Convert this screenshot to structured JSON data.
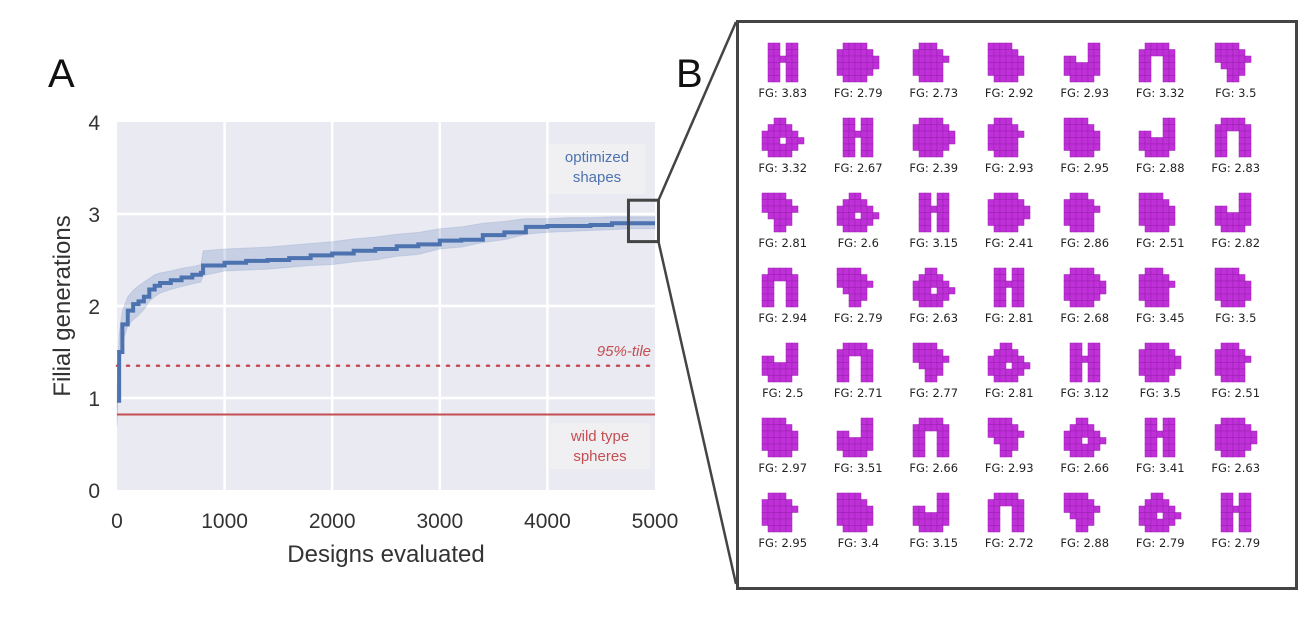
{
  "panels": {
    "a_label": "A",
    "b_label": "B"
  },
  "chart_data": {
    "type": "line",
    "title": "",
    "xlabel": "Designs evaluated",
    "ylabel": "Filial generations",
    "xlim": [
      0,
      5000
    ],
    "ylim": [
      0,
      4
    ],
    "xticks": [
      "0",
      "1000",
      "2000",
      "3000",
      "4000",
      "5000"
    ],
    "yticks": [
      "0",
      "1",
      "2",
      "3",
      "4"
    ],
    "grid": true,
    "series": [
      {
        "name": "optimized shapes",
        "color": "#4c72b0",
        "x": [
          0,
          20,
          50,
          100,
          150,
          200,
          250,
          300,
          350,
          400,
          500,
          600,
          700,
          780,
          800,
          1000,
          1200,
          1400,
          1600,
          1800,
          2000,
          2200,
          2400,
          2600,
          2800,
          3000,
          3200,
          3400,
          3600,
          3800,
          4000,
          4200,
          4400,
          4600,
          4800,
          5000
        ],
        "y": [
          0.97,
          1.5,
          1.8,
          1.95,
          2.02,
          2.05,
          2.1,
          2.18,
          2.22,
          2.25,
          2.28,
          2.31,
          2.34,
          2.36,
          2.44,
          2.47,
          2.49,
          2.5,
          2.52,
          2.55,
          2.57,
          2.6,
          2.62,
          2.65,
          2.67,
          2.71,
          2.72,
          2.77,
          2.8,
          2.86,
          2.87,
          2.87,
          2.88,
          2.9,
          2.9,
          2.9
        ],
        "ci_lower": [
          0.7,
          1.3,
          1.6,
          1.78,
          1.85,
          1.9,
          1.96,
          2.05,
          2.1,
          2.14,
          2.18,
          2.21,
          2.24,
          2.26,
          2.33,
          2.38,
          2.39,
          2.4,
          2.42,
          2.44,
          2.45,
          2.48,
          2.5,
          2.54,
          2.56,
          2.62,
          2.64,
          2.69,
          2.72,
          2.78,
          2.8,
          2.81,
          2.82,
          2.83,
          2.84,
          2.84
        ],
        "ci_upper": [
          1.1,
          1.7,
          1.95,
          2.1,
          2.17,
          2.22,
          2.26,
          2.3,
          2.34,
          2.36,
          2.38,
          2.41,
          2.43,
          2.45,
          2.6,
          2.62,
          2.63,
          2.64,
          2.66,
          2.68,
          2.7,
          2.73,
          2.75,
          2.78,
          2.8,
          2.84,
          2.86,
          2.9,
          2.92,
          2.95,
          2.95,
          2.96,
          2.96,
          2.97,
          2.97,
          2.97
        ]
      }
    ],
    "reference_lines": [
      {
        "name": "95%-tile",
        "y": 1.35,
        "style": "dotted",
        "color": "#c44e52"
      },
      {
        "name": "wild type spheres",
        "y": 0.82,
        "style": "solid",
        "color": "#c44e52"
      }
    ],
    "annotations": [
      {
        "text_lines": [
          "optimized",
          "shapes"
        ],
        "color": "#4c72b0"
      },
      {
        "text_lines": [
          "95%-tile"
        ],
        "color": "#c44e52",
        "italic": true
      },
      {
        "text_lines": [
          "wild type",
          "spheres"
        ],
        "color": "#c44e52"
      }
    ],
    "zoom_box": {
      "x_range": [
        4800,
        5000
      ],
      "y_range": [
        2.7,
        3.15
      ]
    }
  },
  "shapes_grid": {
    "label_prefix": "FG: ",
    "shape_color": "#c030d8",
    "values": [
      [
        "3.83",
        "2.79",
        "2.73",
        "2.92",
        "2.93",
        "3.32",
        "3.5"
      ],
      [
        "3.32",
        "2.67",
        "2.39",
        "2.93",
        "2.95",
        "2.88",
        "2.83"
      ],
      [
        "2.81",
        "2.6",
        "3.15",
        "2.41",
        "2.86",
        "2.51",
        "2.82"
      ],
      [
        "2.94",
        "2.79",
        "2.63",
        "2.81",
        "2.68",
        "3.45",
        "3.5"
      ],
      [
        "2.5",
        "2.71",
        "2.77",
        "2.81",
        "3.12",
        "3.5",
        "2.51"
      ],
      [
        "2.97",
        "3.51",
        "2.66",
        "2.93",
        "2.66",
        "3.41",
        "2.63"
      ],
      [
        "2.95",
        "3.4",
        "3.15",
        "2.72",
        "2.88",
        "2.79",
        "2.79"
      ]
    ]
  }
}
